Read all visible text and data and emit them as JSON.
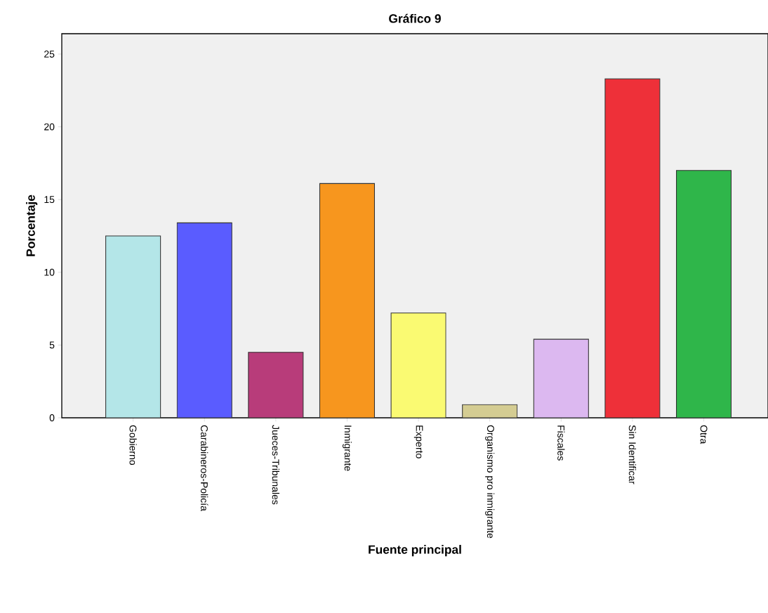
{
  "chart_data": {
    "type": "bar",
    "title": "Gráfico 9",
    "xlabel": "Fuente principal",
    "ylabel": "Porcentaje",
    "categories": [
      "Gobierno",
      "Carabineros-Policía",
      "Jueces-Tribunales",
      "Inmigrante",
      "Experto",
      "Organismo pro inmigrante",
      "Fiscales",
      "Sin Identificar",
      "Otra"
    ],
    "values": [
      12.5,
      13.4,
      4.5,
      16.1,
      7.2,
      0.9,
      5.4,
      23.3,
      17.0
    ],
    "colors": [
      "#b4e6e8",
      "#5a5cff",
      "#b83c7a",
      "#f7961e",
      "#fafa72",
      "#d4cc92",
      "#dcb8f0",
      "#ee3039",
      "#2fb64a"
    ],
    "ylim": [
      0,
      26.4
    ],
    "yticks": [
      0,
      5,
      10,
      15,
      20,
      25
    ],
    "grid": false
  }
}
